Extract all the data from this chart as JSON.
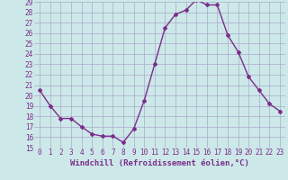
{
  "x": [
    0,
    1,
    2,
    3,
    4,
    5,
    6,
    7,
    8,
    9,
    10,
    11,
    12,
    13,
    14,
    15,
    16,
    17,
    18,
    19,
    20,
    21,
    22,
    23
  ],
  "y": [
    20.5,
    19.0,
    17.8,
    17.8,
    17.0,
    16.3,
    16.1,
    16.1,
    15.5,
    16.8,
    19.5,
    23.0,
    26.5,
    27.8,
    28.2,
    29.2,
    28.7,
    28.7,
    25.8,
    24.2,
    21.8,
    20.5,
    19.2,
    18.5
  ],
  "line_color": "#7b2d8b",
  "marker": "D",
  "marker_size": 2.0,
  "bg_color": "#cce8e8",
  "grid_color": "#aaaacc",
  "xlabel": "Windchill (Refroidissement éolien,°C)",
  "ylim": [
    15,
    29
  ],
  "xlim_min": -0.5,
  "xlim_max": 23.5,
  "yticks": [
    15,
    16,
    17,
    18,
    19,
    20,
    21,
    22,
    23,
    24,
    25,
    26,
    27,
    28,
    29
  ],
  "xticks": [
    0,
    1,
    2,
    3,
    4,
    5,
    6,
    7,
    8,
    9,
    10,
    11,
    12,
    13,
    14,
    15,
    16,
    17,
    18,
    19,
    20,
    21,
    22,
    23
  ],
  "tick_color": "#7b2d8b",
  "xlabel_fontsize": 6.5,
  "tick_fontsize": 5.5,
  "line_width": 1.0
}
